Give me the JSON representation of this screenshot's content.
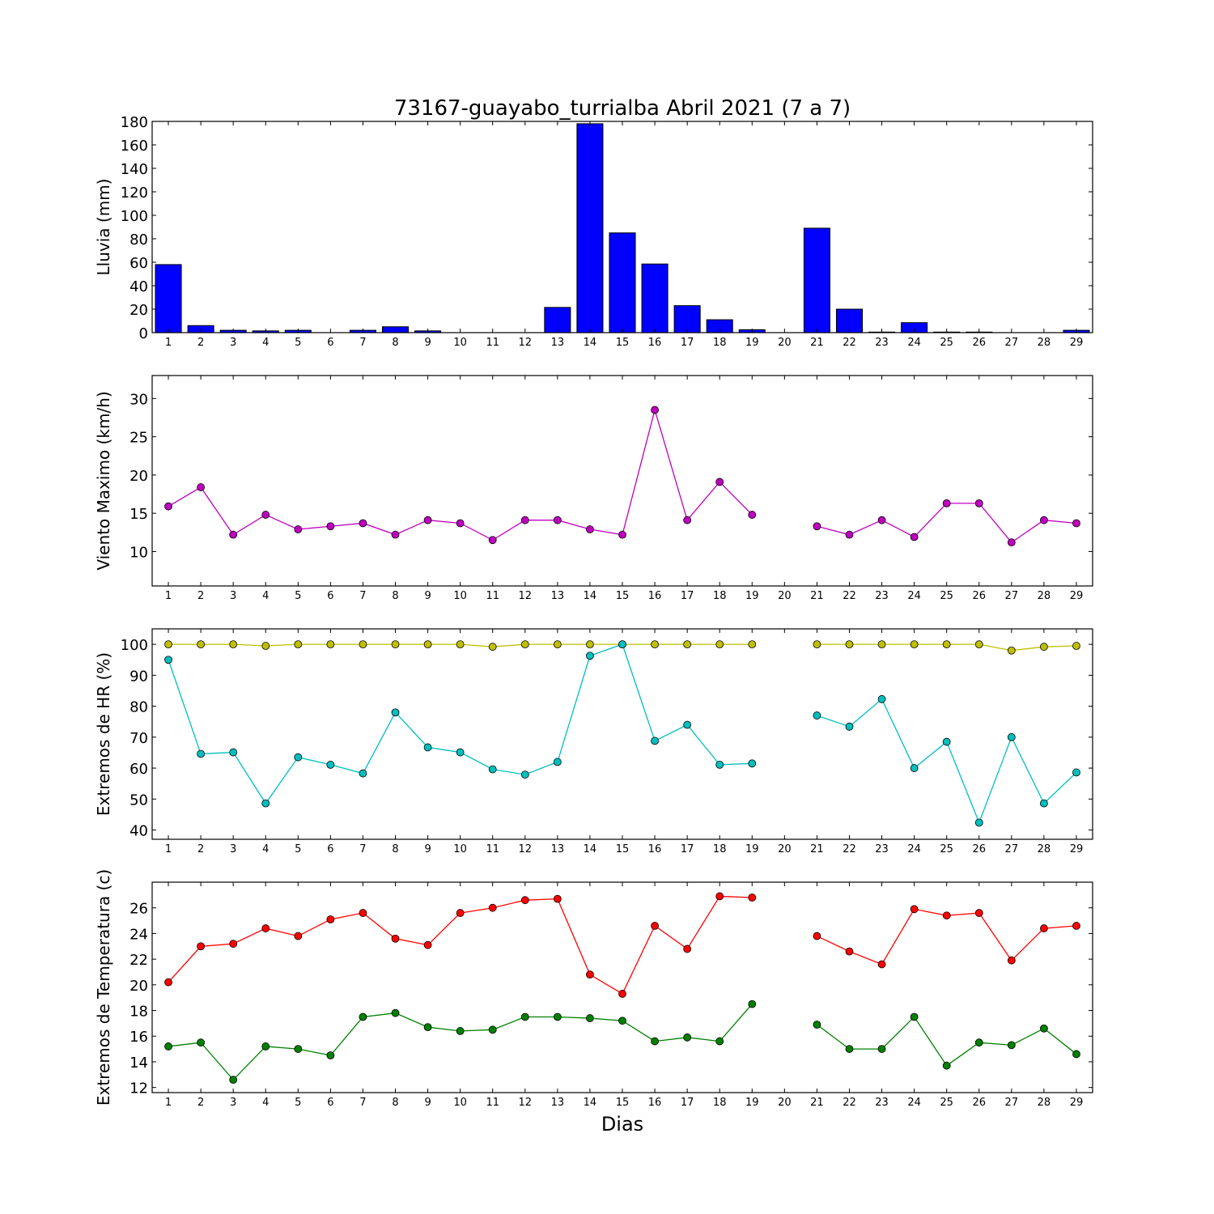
{
  "figure": {
    "title": "73167-guayabo_turrialba Abril 2021  (7 a 7)",
    "xlabel": "Dias"
  },
  "chart_data": [
    {
      "type": "bar",
      "ylabel": "Lluvia (mm)",
      "ylim": [
        0,
        180
      ],
      "yticks": [
        0,
        20,
        40,
        60,
        80,
        100,
        120,
        140,
        160,
        180
      ],
      "x": [
        1,
        2,
        3,
        4,
        5,
        6,
        7,
        8,
        9,
        10,
        11,
        12,
        13,
        14,
        15,
        16,
        17,
        18,
        19,
        20,
        21,
        22,
        23,
        24,
        25,
        26,
        27,
        28,
        29
      ],
      "series": [
        {
          "color": "#0000ff",
          "values": [
            58,
            6,
            2,
            1.5,
            2,
            0,
            2,
            5,
            1.5,
            0,
            0,
            0,
            21.5,
            178,
            85,
            58.5,
            23,
            11,
            2.5,
            0,
            89,
            20,
            0.5,
            8.5,
            0.5,
            0.5,
            0,
            0,
            2
          ]
        }
      ]
    },
    {
      "type": "line",
      "ylabel": "Viento Maximo (km/h)",
      "ylim": [
        5.5,
        33
      ],
      "yticks": [
        10,
        15,
        20,
        25,
        30
      ],
      "x": [
        1,
        2,
        3,
        4,
        5,
        6,
        7,
        8,
        9,
        10,
        11,
        12,
        13,
        14,
        15,
        16,
        17,
        18,
        19,
        20,
        21,
        22,
        23,
        24,
        25,
        26,
        27,
        28,
        29
      ],
      "series": [
        {
          "color": "#bf00bf",
          "values": [
            15.9,
            18.4,
            12.2,
            14.8,
            12.9,
            13.3,
            13.7,
            12.2,
            14.1,
            13.7,
            11.5,
            14.1,
            14.1,
            12.9,
            12.2,
            28.5,
            14.1,
            19.1,
            14.8,
            null,
            13.3,
            12.2,
            14.1,
            11.9,
            16.3,
            16.3,
            11.2,
            14.1,
            13.7
          ]
        }
      ]
    },
    {
      "type": "line",
      "ylabel": "Extremos de HR (%)",
      "ylim": [
        37,
        105
      ],
      "yticks": [
        40,
        50,
        60,
        70,
        80,
        90,
        100
      ],
      "x": [
        1,
        2,
        3,
        4,
        5,
        6,
        7,
        8,
        9,
        10,
        11,
        12,
        13,
        14,
        15,
        16,
        17,
        18,
        19,
        20,
        21,
        22,
        23,
        24,
        25,
        26,
        27,
        28,
        29
      ],
      "series": [
        {
          "color": "#bfbf00",
          "values": [
            100,
            100,
            100,
            99.5,
            100,
            100,
            100,
            100,
            100,
            100,
            99.2,
            100,
            100,
            100,
            100,
            100,
            100,
            100,
            100,
            null,
            100,
            100,
            100,
            100,
            100,
            100,
            98,
            99.2,
            99.5
          ]
        },
        {
          "color": "#00bfbf",
          "values": [
            95,
            64.6,
            65.1,
            48.6,
            63.5,
            61.1,
            58.3,
            78,
            66.7,
            65.1,
            59.6,
            57.9,
            62,
            96.3,
            100,
            68.8,
            74,
            61.1,
            61.5,
            null,
            77,
            73.4,
            82.3,
            60,
            68.5,
            42.4,
            70,
            48.6,
            58.6
          ]
        }
      ]
    },
    {
      "type": "line",
      "ylabel": "Extremos de Temperatura (c)",
      "ylim": [
        11.6,
        28
      ],
      "yticks": [
        12,
        14,
        16,
        18,
        20,
        22,
        24,
        26
      ],
      "x": [
        1,
        2,
        3,
        4,
        5,
        6,
        7,
        8,
        9,
        10,
        11,
        12,
        13,
        14,
        15,
        16,
        17,
        18,
        19,
        20,
        21,
        22,
        23,
        24,
        25,
        26,
        27,
        28,
        29
      ],
      "series": [
        {
          "color": "#ff0000",
          "values": [
            20.2,
            23,
            23.2,
            24.4,
            23.8,
            25.1,
            25.6,
            23.6,
            23.1,
            25.6,
            26,
            26.6,
            26.7,
            20.8,
            19.3,
            24.6,
            22.8,
            26.9,
            26.8,
            null,
            23.8,
            22.6,
            21.6,
            25.9,
            25.4,
            25.6,
            21.9,
            24.4,
            24.6
          ]
        },
        {
          "color": "#008000",
          "values": [
            15.2,
            15.5,
            12.6,
            15.2,
            15,
            14.5,
            17.5,
            17.8,
            16.7,
            16.4,
            16.5,
            17.5,
            17.5,
            17.4,
            17.2,
            15.6,
            15.9,
            15.6,
            18.5,
            null,
            16.9,
            15,
            15,
            17.5,
            13.7,
            15.5,
            15.3,
            16.6,
            14.6
          ]
        }
      ]
    }
  ]
}
